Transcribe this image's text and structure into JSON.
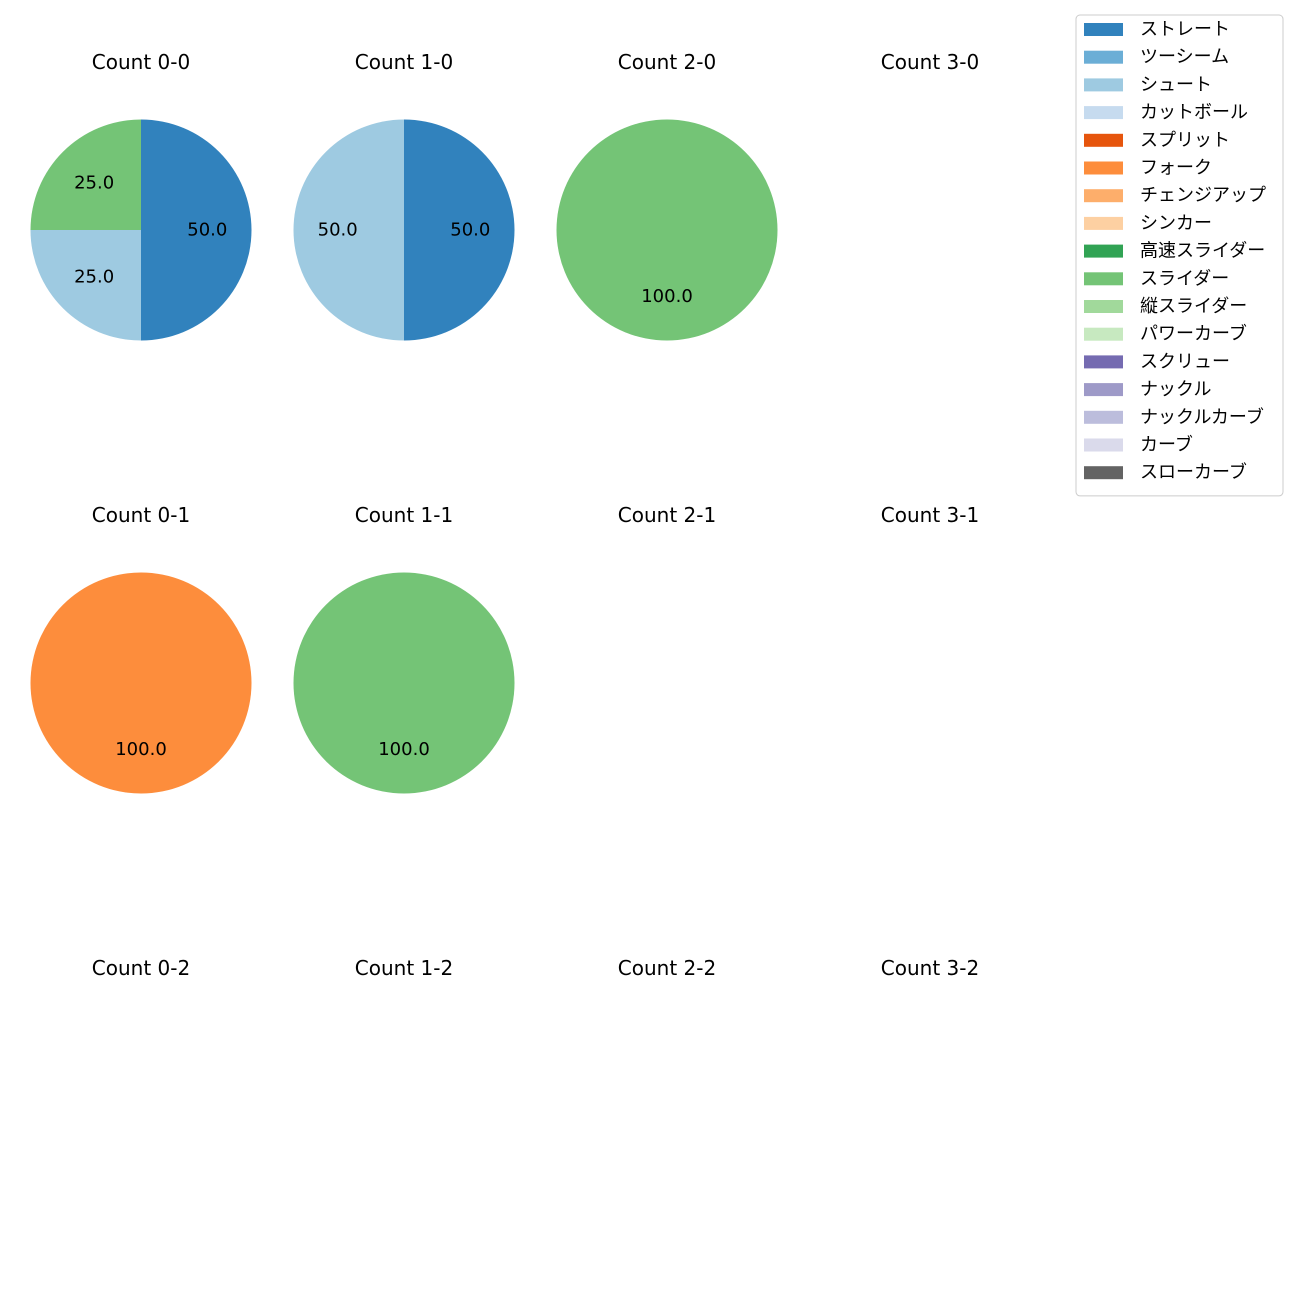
{
  "chart_data": {
    "type": "pie",
    "title": "",
    "legend_position": "top-right",
    "legend": [
      {
        "name": "ストレート",
        "color": "#3182bd"
      },
      {
        "name": "ツーシーム",
        "color": "#6baed6"
      },
      {
        "name": "シュート",
        "color": "#9ecae1"
      },
      {
        "name": "カットボール",
        "color": "#c6dbef"
      },
      {
        "name": "スプリット",
        "color": "#e6550d"
      },
      {
        "name": "フォーク",
        "color": "#fd8d3c"
      },
      {
        "name": "チェンジアップ",
        "color": "#fdae6b"
      },
      {
        "name": "シンカー",
        "color": "#fdd0a2"
      },
      {
        "name": "高速スライダー",
        "color": "#31a354"
      },
      {
        "name": "スライダー",
        "color": "#74c476"
      },
      {
        "name": "縦スライダー",
        "color": "#a1d99b"
      },
      {
        "name": "パワーカーブ",
        "color": "#c7e9c0"
      },
      {
        "name": "スクリュー",
        "color": "#756bb1"
      },
      {
        "name": "ナックル",
        "color": "#9e9ac8"
      },
      {
        "name": "ナックルカーブ",
        "color": "#bcbddc"
      },
      {
        "name": "カーブ",
        "color": "#dadaeb"
      },
      {
        "name": "スローカーブ",
        "color": "#636363"
      }
    ],
    "panels": [
      {
        "title": "Count 0-0",
        "slices": [
          {
            "label": "ストレート",
            "value": 50.0
          },
          {
            "label": "シュート",
            "value": 25.0
          },
          {
            "label": "スライダー",
            "value": 25.0
          }
        ]
      },
      {
        "title": "Count 1-0",
        "slices": [
          {
            "label": "ストレート",
            "value": 50.0
          },
          {
            "label": "シュート",
            "value": 50.0
          }
        ]
      },
      {
        "title": "Count 2-0",
        "slices": [
          {
            "label": "スライダー",
            "value": 100.0
          }
        ]
      },
      {
        "title": "Count 3-0",
        "slices": []
      },
      {
        "title": "Count 0-1",
        "slices": [
          {
            "label": "フォーク",
            "value": 100.0
          }
        ]
      },
      {
        "title": "Count 1-1",
        "slices": [
          {
            "label": "スライダー",
            "value": 100.0
          }
        ]
      },
      {
        "title": "Count 2-1",
        "slices": []
      },
      {
        "title": "Count 3-1",
        "slices": []
      },
      {
        "title": "Count 0-2",
        "slices": []
      },
      {
        "title": "Count 1-2",
        "slices": []
      },
      {
        "title": "Count 2-2",
        "slices": []
      },
      {
        "title": "Count 3-2",
        "slices": []
      }
    ]
  }
}
